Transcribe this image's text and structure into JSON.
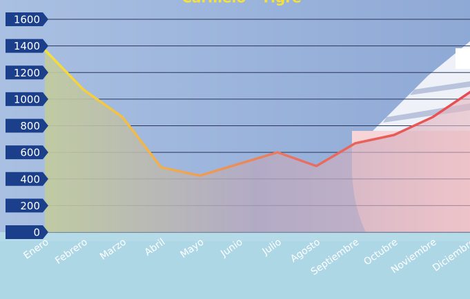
{
  "chart_data": {
    "type": "line",
    "title": "Carmelo - Tigre",
    "categories": [
      "Enero",
      "Febrero",
      "Marzo",
      "Abril",
      "Mayo",
      "Junio",
      "Julio",
      "Agosto",
      "Septiembre",
      "Octubre",
      "Noviembre",
      "Diciembre"
    ],
    "series": [
      {
        "name": "Carmelo - Tigre",
        "color": "#e8605a",
        "values": [
          1370,
          1070,
          865,
          487,
          425,
          513,
          600,
          497,
          668,
          730,
          865,
          1060
        ]
      }
    ],
    "ylim": [
      0,
      1600
    ],
    "yticks": [
      0,
      200,
      400,
      600,
      800,
      1000,
      1200,
      1400,
      1600
    ],
    "grid": true
  }
}
